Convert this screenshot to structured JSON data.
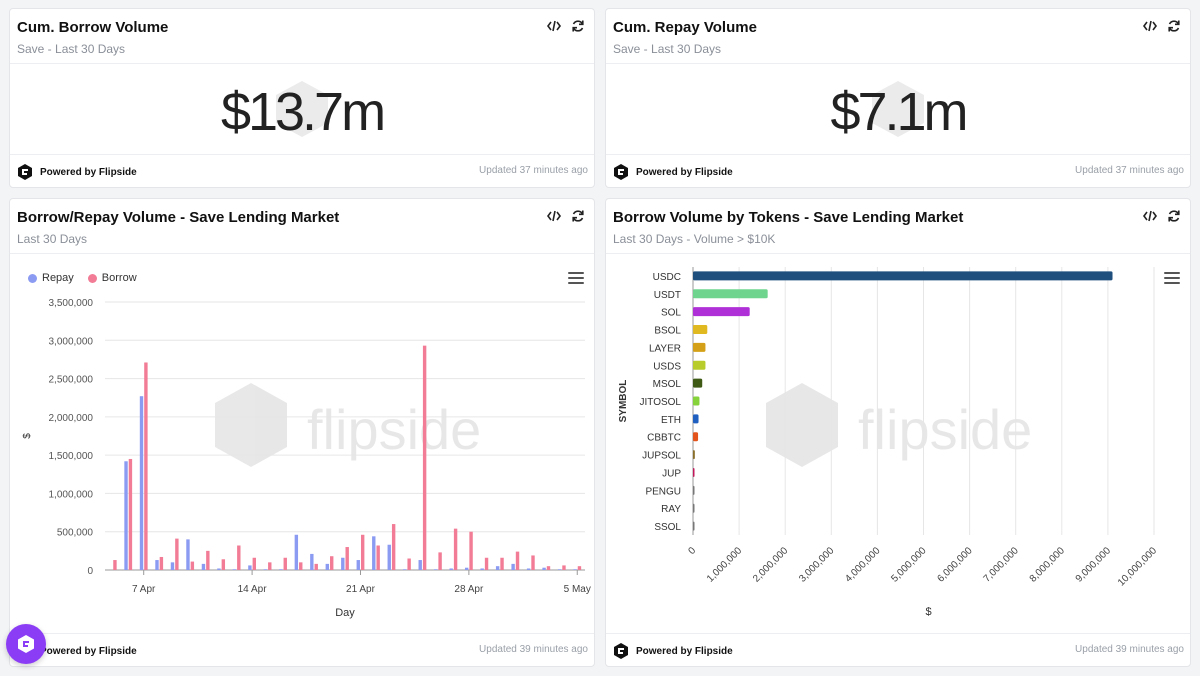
{
  "cards": {
    "borrow_volume": {
      "title": "Cum. Borrow Volume",
      "subtitle": "Save - Last 30 Days",
      "value": "$13.7m",
      "powered": "Powered by Flipside",
      "updated": "Updated 37 minutes ago"
    },
    "repay_volume": {
      "title": "Cum. Repay Volume",
      "subtitle": "Save - Last 30 Days",
      "value": "$7.1m",
      "powered": "Powered by Flipside",
      "updated": "Updated 37 minutes ago"
    },
    "borrow_repay": {
      "title": "Borrow/Repay Volume - Save Lending Market",
      "subtitle": "Last 30 Days",
      "watermark": "flipside",
      "powered": "Powered by Flipside",
      "updated": "Updated 39 minutes ago"
    },
    "by_tokens": {
      "title": "Borrow Volume by Tokens - Save Lending Market",
      "subtitle": "Last 30 Days - Volume > $10K",
      "watermark": "flipside",
      "powered": "Powered by Flipside",
      "updated": "Updated 39 minutes ago"
    }
  },
  "icons": {
    "embed": "code-icon",
    "refresh": "refresh-icon",
    "menu": "hamburger-icon",
    "logo": "flipside-logo-icon",
    "chat": "chat-bubble-icon"
  },
  "chart_data": [
    {
      "type": "bar",
      "xlabel": "Day",
      "ylabel": "$",
      "ylim": [
        0,
        3500000
      ],
      "yticks": [
        "0",
        "500,000",
        "1,000,000",
        "1,500,000",
        "2,000,000",
        "2,500,000",
        "3,000,000",
        "3,500,000"
      ],
      "xticks": [
        "7 Apr",
        "14 Apr",
        "21 Apr",
        "28 Apr",
        "5 May"
      ],
      "legend_position": "top-left",
      "grid": true,
      "categories": [
        "5 Apr",
        "6 Apr",
        "7 Apr",
        "8 Apr",
        "9 Apr",
        "10 Apr",
        "11 Apr",
        "12 Apr",
        "13 Apr",
        "14 Apr",
        "15 Apr",
        "16 Apr",
        "17 Apr",
        "18 Apr",
        "19 Apr",
        "20 Apr",
        "21 Apr",
        "22 Apr",
        "23 Apr",
        "24 Apr",
        "25 Apr",
        "26 Apr",
        "27 Apr",
        "28 Apr",
        "29 Apr",
        "30 Apr",
        "1 May",
        "2 May",
        "3 May",
        "4 May",
        "5 May"
      ],
      "series": [
        {
          "name": "Repay",
          "color": "#8c9bf2",
          "values": [
            0,
            1420000,
            2270000,
            130000,
            100000,
            400000,
            80000,
            20000,
            10000,
            60000,
            10000,
            10000,
            460000,
            210000,
            80000,
            160000,
            130000,
            440000,
            330000,
            10000,
            130000,
            10000,
            20000,
            30000,
            20000,
            50000,
            80000,
            20000,
            30000,
            10000,
            10000
          ]
        },
        {
          "name": "Borrow",
          "color": "#f27c95",
          "values": [
            130000,
            1450000,
            2710000,
            170000,
            410000,
            110000,
            250000,
            140000,
            320000,
            160000,
            100000,
            160000,
            100000,
            80000,
            180000,
            300000,
            460000,
            320000,
            600000,
            150000,
            2930000,
            230000,
            540000,
            500000,
            160000,
            160000,
            240000,
            190000,
            50000,
            60000,
            50000
          ]
        }
      ]
    },
    {
      "type": "bar",
      "orientation": "horizontal",
      "xlabel": "$",
      "ylabel": "SYMBOL",
      "xlim": [
        0,
        10000000
      ],
      "xticks": [
        "0",
        "1,000,000",
        "2,000,000",
        "3,000,000",
        "4,000,000",
        "5,000,000",
        "6,000,000",
        "7,000,000",
        "8,000,000",
        "9,000,000",
        "10,000,000"
      ],
      "grid": true,
      "categories": [
        "USDC",
        "USDT",
        "SOL",
        "BSOL",
        "LAYER",
        "USDS",
        "MSOL",
        "JITOSOL",
        "ETH",
        "CBBTC",
        "JUPSOL",
        "JUP",
        "PENGU",
        "RAY",
        "SSOL"
      ],
      "values": [
        9100000,
        1620000,
        1230000,
        310000,
        270000,
        270000,
        200000,
        140000,
        120000,
        110000,
        40000,
        20000,
        10000,
        10000,
        10000
      ],
      "colors": [
        "#1e4f7d",
        "#6fd58e",
        "#b030d8",
        "#e0b820",
        "#d4a017",
        "#b8cc2c",
        "#3f5a14",
        "#86d23a",
        "#1f5fc0",
        "#e2541c",
        "#8a6f2a",
        "#c2185b",
        "#777777",
        "#777777",
        "#777777"
      ]
    }
  ]
}
